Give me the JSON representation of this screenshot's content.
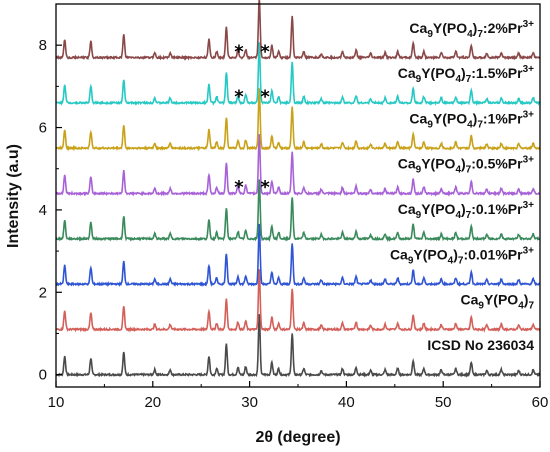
{
  "chart_data": {
    "type": "line",
    "title": "",
    "xlabel": "2θ (degree)",
    "ylabel": "Intensity (a.u)",
    "xlim": [
      10,
      60
    ],
    "ylim": [
      -0.3,
      9
    ],
    "xticks": [
      10,
      20,
      30,
      40,
      50,
      60
    ],
    "yticks": [
      0,
      2,
      4,
      6,
      8
    ],
    "grid": false,
    "legend": "inline-labels",
    "peaks": [
      {
        "x": 10.9,
        "h": 0.45
      },
      {
        "x": 13.6,
        "h": 0.4
      },
      {
        "x": 17.0,
        "h": 0.55
      },
      {
        "x": 20.2,
        "h": 0.12
      },
      {
        "x": 21.8,
        "h": 0.12
      },
      {
        "x": 25.8,
        "h": 0.45
      },
      {
        "x": 26.6,
        "h": 0.15
      },
      {
        "x": 27.6,
        "h": 0.75
      },
      {
        "x": 28.8,
        "h": 0.18
      },
      {
        "x": 29.6,
        "h": 0.2
      },
      {
        "x": 31.0,
        "h": 1.45
      },
      {
        "x": 32.3,
        "h": 0.3
      },
      {
        "x": 33.0,
        "h": 0.15
      },
      {
        "x": 34.4,
        "h": 1.0
      },
      {
        "x": 35.6,
        "h": 0.15
      },
      {
        "x": 37.4,
        "h": 0.1
      },
      {
        "x": 39.6,
        "h": 0.15
      },
      {
        "x": 41.0,
        "h": 0.18
      },
      {
        "x": 42.5,
        "h": 0.1
      },
      {
        "x": 44.0,
        "h": 0.12
      },
      {
        "x": 45.3,
        "h": 0.15
      },
      {
        "x": 46.9,
        "h": 0.35
      },
      {
        "x": 48.0,
        "h": 0.15
      },
      {
        "x": 49.8,
        "h": 0.12
      },
      {
        "x": 51.3,
        "h": 0.15
      },
      {
        "x": 52.9,
        "h": 0.3
      },
      {
        "x": 54.5,
        "h": 0.1
      },
      {
        "x": 56.0,
        "h": 0.12
      },
      {
        "x": 57.8,
        "h": 0.1
      },
      {
        "x": 59.3,
        "h": 0.12
      }
    ],
    "series": [
      {
        "label": "ICSD No 236034",
        "baseline": 0.0,
        "color": "#4a4a4a"
      },
      {
        "label": "Ca9Y(PO4)7",
        "baseline": 1.1,
        "color": "#d4605a"
      },
      {
        "label": "Ca9Y(PO4)7:0.01%Pr3+",
        "baseline": 2.2,
        "color": "#2f55d4"
      },
      {
        "label": "Ca9Y(PO4)7:0.1%Pr3+",
        "baseline": 3.3,
        "color": "#3a8a5c"
      },
      {
        "label": "Ca9Y(PO4)7:0.5%Pr3+",
        "baseline": 4.4,
        "color": "#a862d8"
      },
      {
        "label": "Ca9Y(PO4)7:1%Pr3+",
        "baseline": 5.5,
        "color": "#c9a21a"
      },
      {
        "label": "Ca9Y(PO4)7:1.5%Pr3+",
        "baseline": 6.6,
        "color": "#27c9c4"
      },
      {
        "label": "Ca9Y(PO4)7:2%Pr3+",
        "baseline": 7.7,
        "color": "#8a4848"
      }
    ],
    "label_parts": [
      [
        {
          "t": "ICSD No 236034",
          "k": "n"
        }
      ],
      [
        {
          "t": "Ca",
          "k": "n"
        },
        {
          "t": "9",
          "k": "sub"
        },
        {
          "t": "Y(PO",
          "k": "n"
        },
        {
          "t": "4",
          "k": "sub"
        },
        {
          "t": ")",
          "k": "n"
        },
        {
          "t": "7",
          "k": "sub"
        }
      ],
      [
        {
          "t": "Ca",
          "k": "n"
        },
        {
          "t": "9",
          "k": "sub"
        },
        {
          "t": "Y(PO",
          "k": "n"
        },
        {
          "t": "4",
          "k": "sub"
        },
        {
          "t": ")",
          "k": "n"
        },
        {
          "t": "7",
          "k": "sub"
        },
        {
          "t": ":0.01%Pr",
          "k": "n"
        },
        {
          "t": "3+",
          "k": "sup"
        }
      ],
      [
        {
          "t": "Ca",
          "k": "n"
        },
        {
          "t": "9",
          "k": "sub"
        },
        {
          "t": "Y(PO",
          "k": "n"
        },
        {
          "t": "4",
          "k": "sub"
        },
        {
          "t": ")",
          "k": "n"
        },
        {
          "t": "7",
          "k": "sub"
        },
        {
          "t": ":0.1%Pr",
          "k": "n"
        },
        {
          "t": "3+",
          "k": "sup"
        }
      ],
      [
        {
          "t": "Ca",
          "k": "n"
        },
        {
          "t": "9",
          "k": "sub"
        },
        {
          "t": "Y(PO",
          "k": "n"
        },
        {
          "t": "4",
          "k": "sub"
        },
        {
          "t": ")",
          "k": "n"
        },
        {
          "t": "7",
          "k": "sub"
        },
        {
          "t": ":0.5%Pr",
          "k": "n"
        },
        {
          "t": "3+",
          "k": "sup"
        }
      ],
      [
        {
          "t": "Ca",
          "k": "n"
        },
        {
          "t": "9",
          "k": "sub"
        },
        {
          "t": "Y(PO",
          "k": "n"
        },
        {
          "t": "4",
          "k": "sub"
        },
        {
          "t": ")",
          "k": "n"
        },
        {
          "t": "7",
          "k": "sub"
        },
        {
          "t": ":1%Pr",
          "k": "n"
        },
        {
          "t": "3+",
          "k": "sup"
        }
      ],
      [
        {
          "t": "Ca",
          "k": "n"
        },
        {
          "t": "9",
          "k": "sub"
        },
        {
          "t": "Y(PO",
          "k": "n"
        },
        {
          "t": "4",
          "k": "sub"
        },
        {
          "t": ")",
          "k": "n"
        },
        {
          "t": "7",
          "k": "sub"
        },
        {
          "t": ":1.5%Pr",
          "k": "n"
        },
        {
          "t": "3+",
          "k": "sup"
        }
      ],
      [
        {
          "t": "Ca",
          "k": "n"
        },
        {
          "t": "9",
          "k": "sub"
        },
        {
          "t": "Y(PO",
          "k": "n"
        },
        {
          "t": "4",
          "k": "sub"
        },
        {
          "t": ")",
          "k": "n"
        },
        {
          "t": "7",
          "k": "sub"
        },
        {
          "t": ":2%Pr",
          "k": "n"
        },
        {
          "t": "3+",
          "k": "sup"
        }
      ]
    ],
    "annotations": [
      {
        "text": "*",
        "x": 28.9,
        "y": 7.9
      },
      {
        "text": "*",
        "x": 31.6,
        "y": 7.9
      },
      {
        "text": "*",
        "x": 28.9,
        "y": 6.8
      },
      {
        "text": "*",
        "x": 31.6,
        "y": 6.8
      },
      {
        "text": "*",
        "x": 28.9,
        "y": 4.6
      },
      {
        "text": "*",
        "x": 31.6,
        "y": 4.6
      }
    ]
  }
}
